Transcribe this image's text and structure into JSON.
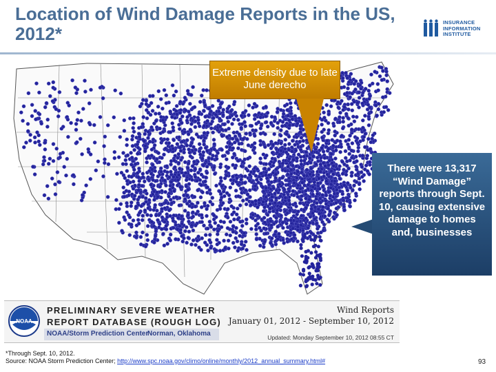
{
  "title": "Location of Wind Damage Reports in the US, 2012*",
  "logo": {
    "line1": "INSURANCE",
    "line2": "INFORMATION",
    "line3": "INSTITUTE"
  },
  "callout_top": "Extreme density due to late June derecho",
  "callout_right": "There were 13,317 “Wind Damage” reports through Sept. 10, causing extensive damage to homes and, businesses",
  "noaa_box": {
    "line1": "PRELIMINARY SEVERE WEATHER",
    "line2": "REPORT DATABASE (ROUGH LOG)",
    "center": "NOAA/Storm Prediction Center",
    "city": "Norman, Oklahoma",
    "wind_reports": "Wind Reports",
    "date_range": "January 01, 2012 - September 10, 2012",
    "updated": "Updated:  Monday September 10, 2012 08:55 CT"
  },
  "footnote": {
    "line1": "*Through Sept. 10, 2012.",
    "source_prefix": "Source: NOAA Storm Prediction Center; ",
    "source_link": "http://www.spc.noaa.gov/climo/online/monthly/2012_annual_summary.html#"
  },
  "page_number": "93",
  "colors": {
    "title": "#4a6e96",
    "dot": "#24249c",
    "callout_top": "#d8930a",
    "callout_right": "#2a527d"
  },
  "icons": [
    "iii-logo-icon",
    "noaa-emblem-icon"
  ]
}
